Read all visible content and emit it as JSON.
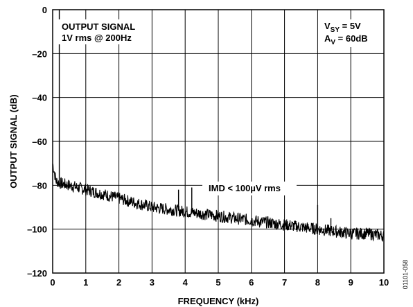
{
  "chart_data": {
    "type": "line",
    "title": "",
    "xlabel": "FREQUENCY (kHz)",
    "ylabel": "OUTPUT SIGNAL (dB)",
    "xlim": [
      0,
      10
    ],
    "ylim": [
      -120,
      0
    ],
    "x_ticks": [
      "0",
      "1",
      "2",
      "3",
      "4",
      "5",
      "6",
      "7",
      "8",
      "9",
      "10"
    ],
    "y_ticks": [
      "0",
      "–20",
      "–40",
      "–60",
      "–80",
      "–100",
      "–120"
    ],
    "grid": true,
    "series": [
      {
        "x": [
          0,
          0.1,
          0.2,
          0.5,
          1,
          1.5,
          2,
          2.5,
          3,
          3.5,
          4,
          4.5,
          5,
          5.5,
          6,
          6.5,
          7,
          7.5,
          8,
          8.5,
          9,
          9.5,
          10
        ],
        "y": [
          -70,
          -78,
          -79,
          -80,
          -82,
          -84,
          -86,
          -88,
          -90,
          -91,
          -92,
          -93,
          -94,
          -95,
          -96,
          -97,
          -98,
          -99,
          -100,
          -101,
          -102,
          -102,
          -103
        ],
        "color": "#000000"
      }
    ],
    "spikes": [
      {
        "x": 0.2,
        "y": 0
      },
      {
        "x": 3.8,
        "y": -82
      },
      {
        "x": 4.2,
        "y": -81
      },
      {
        "x": 8.0,
        "y": -89
      },
      {
        "x": 8.4,
        "y": -95
      }
    ],
    "annotations": [
      {
        "lines": [
          "OUTPUT SIGNAL",
          "1V rms @ 200Hz"
        ],
        "x": 0.45,
        "y": -4.5
      },
      {
        "lines": [
          "IMD < 100µV rms"
        ],
        "x": 4.75,
        "y": -83
      },
      {
        "lines": [
          "V_SY = 5V",
          "A_V = 60dB"
        ],
        "x": 7.95,
        "y": -4.5
      }
    ]
  },
  "labels": {
    "annotation1_line1": "OUTPUT SIGNAL",
    "annotation1_line2": "1V rms @ 200Hz",
    "annotation2": "IMD < 100µV rms",
    "vsy_v": "V",
    "vsy_sub": "SY",
    "vsy_rest": " = 5V",
    "av_a": "A",
    "av_sub": "V",
    "av_rest": " = 60dB",
    "figure_id": "01101-058"
  }
}
